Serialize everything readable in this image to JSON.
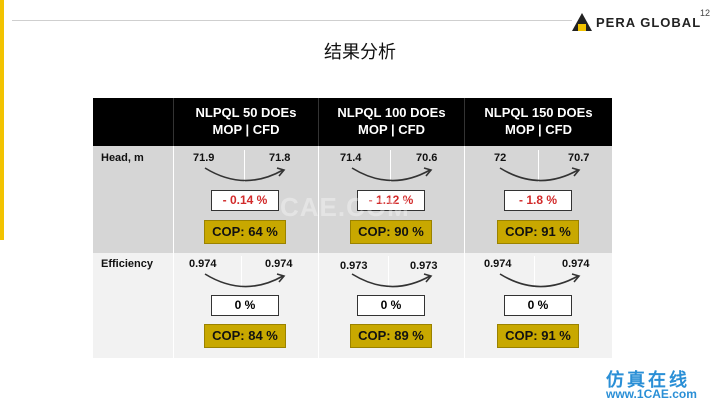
{
  "header": {
    "logo_text": "PERA GLOBAL",
    "page_number": "12",
    "title": "结果分析"
  },
  "table": {
    "columns": [
      {
        "line1": "NLPQL 50 DOEs",
        "line2": "MOP | CFD"
      },
      {
        "line1": "NLPQL 100 DOEs",
        "line2": "MOP | CFD"
      },
      {
        "line1": "NLPQL 150 DOEs",
        "line2": "MOP | CFD"
      }
    ],
    "rows": [
      {
        "label": "Head, m",
        "cells": [
          {
            "mop": "71.9",
            "cfd": "71.8",
            "diff": "- 0.14 %",
            "cop": "COP: 64 %"
          },
          {
            "mop": "71.4",
            "cfd": "70.6",
            "diff": "- 1.12 %",
            "cop": "COP: 90 %"
          },
          {
            "mop": "72",
            "cfd": "70.7",
            "diff": "- 1.8 %",
            "cop": "COP: 91 %"
          }
        ]
      },
      {
        "label": "Efficiency",
        "cells": [
          {
            "mop": "0.974",
            "cfd": "0.974",
            "diff": "0 %",
            "cop": "COP: 84 %"
          },
          {
            "mop": "0.973",
            "cfd": "0.973",
            "diff": "0 %",
            "cop": "COP: 89 %"
          },
          {
            "mop": "0.974",
            "cfd": "0.974",
            "diff": "0 %",
            "cop": "COP: 91 %"
          }
        ]
      }
    ]
  },
  "watermark": "CAE.COM",
  "footer": {
    "brand_cn": "仿真在线",
    "brand_url": "www.1CAE.com"
  },
  "colors": {
    "accent_yellow": "#f2c300",
    "cop_gold": "#c8a800",
    "diff_red": "#d22a2a",
    "header_black": "#000000",
    "brand_blue": "#2a8fd6"
  }
}
